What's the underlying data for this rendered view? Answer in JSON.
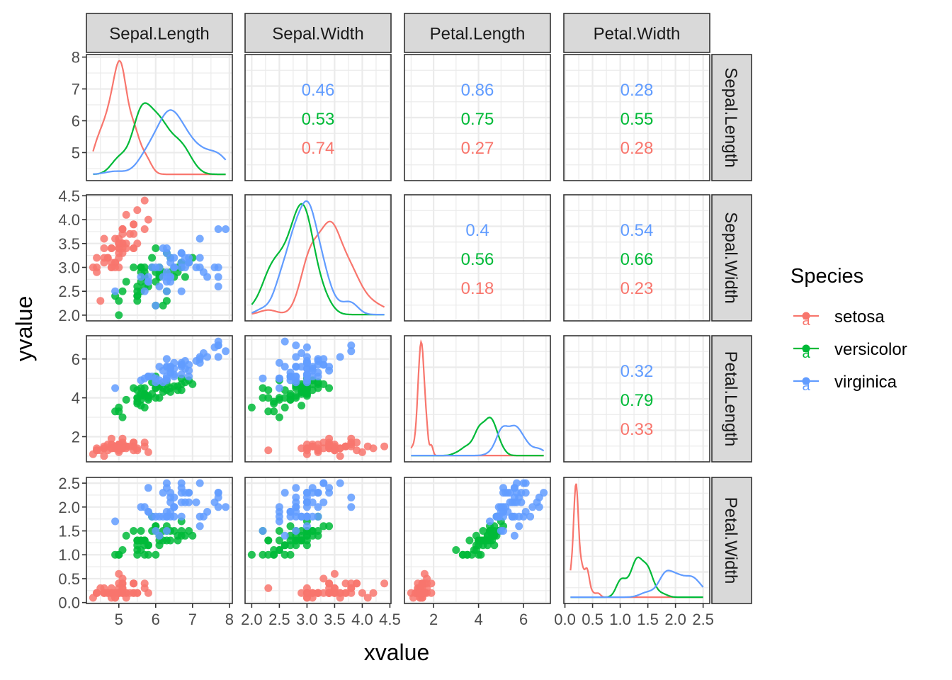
{
  "chart_data": {
    "type": "scatter",
    "subtype": "pairs-matrix (density diagonal, scatter lower, correlation upper)",
    "xlabel": "xvalue",
    "ylabel": "yvalue",
    "grid": true,
    "legend": {
      "title": "Species",
      "placement": "right",
      "entries": [
        {
          "name": "setosa",
          "color": "#F8766D",
          "key_glyph": "a"
        },
        {
          "name": "versicolor",
          "color": "#00BA38",
          "key_glyph": "a"
        },
        {
          "name": "virginica",
          "color": "#619CFF",
          "key_glyph": "a"
        }
      ]
    },
    "variables": [
      "Sepal.Length",
      "Sepal.Width",
      "Petal.Length",
      "Petal.Width"
    ],
    "axes": {
      "Sepal.Length": {
        "range": [
          4.3,
          7.9
        ],
        "ticks": [
          5,
          6,
          7,
          8
        ],
        "tick_labels": [
          "5",
          "6",
          "7",
          "8"
        ]
      },
      "Sepal.Width": {
        "range": [
          2.0,
          4.4
        ],
        "ticks": [
          2.0,
          2.5,
          3.0,
          3.5,
          4.0,
          4.5
        ],
        "tick_labels": [
          "2.0",
          "2.5",
          "3.0",
          "3.5",
          "4.0",
          "4.5"
        ]
      },
      "Petal.Length": {
        "range": [
          1.0,
          6.9
        ],
        "ticks": [
          2,
          4,
          6
        ],
        "tick_labels": [
          "2",
          "4",
          "6"
        ]
      },
      "Petal.Width": {
        "range": [
          0.1,
          2.5
        ],
        "ticks": [
          0.0,
          0.5,
          1.0,
          1.5,
          2.0,
          2.5
        ],
        "tick_labels": [
          "0.0",
          "0.5",
          "1.0",
          "1.5",
          "2.0",
          "2.5"
        ]
      }
    },
    "correlations": {
      "Sepal.Length|Sepal.Width": {
        "virginica": "0.46",
        "versicolor": "0.53",
        "setosa": "0.74"
      },
      "Sepal.Length|Petal.Length": {
        "virginica": "0.86",
        "versicolor": "0.75",
        "setosa": "0.27"
      },
      "Sepal.Length|Petal.Width": {
        "virginica": "0.28",
        "versicolor": "0.55",
        "setosa": "0.28"
      },
      "Sepal.Width|Petal.Length": {
        "virginica": "0.4",
        "versicolor": "0.56",
        "setosa": "0.18"
      },
      "Sepal.Width|Petal.Width": {
        "virginica": "0.54",
        "versicolor": "0.66",
        "setosa": "0.23"
      },
      "Petal.Length|Petal.Width": {
        "virginica": "0.32",
        "versicolor": "0.79",
        "setosa": "0.33"
      }
    },
    "density_peaks": {
      "Sepal.Length": {
        "setosa": 5.0,
        "versicolor": 5.7,
        "virginica": 6.4
      },
      "Sepal.Width": {
        "setosa": 3.4,
        "versicolor": 2.8,
        "virginica": 3.0
      },
      "Petal.Length": {
        "setosa": 1.5,
        "versicolor": 4.5,
        "virginica": 5.5
      },
      "Petal.Width": {
        "setosa": 0.2,
        "versicolor": 1.3,
        "virginica": 2.0
      }
    },
    "series": [
      {
        "name": "setosa",
        "points": [
          [
            5.1,
            3.5,
            1.4,
            0.2
          ],
          [
            4.9,
            3.0,
            1.4,
            0.2
          ],
          [
            4.7,
            3.2,
            1.3,
            0.2
          ],
          [
            4.6,
            3.1,
            1.5,
            0.2
          ],
          [
            5.0,
            3.6,
            1.4,
            0.2
          ],
          [
            5.4,
            3.9,
            1.7,
            0.4
          ],
          [
            4.6,
            3.4,
            1.4,
            0.3
          ],
          [
            5.0,
            3.4,
            1.5,
            0.2
          ],
          [
            4.4,
            2.9,
            1.4,
            0.2
          ],
          [
            4.9,
            3.1,
            1.5,
            0.1
          ],
          [
            5.4,
            3.7,
            1.5,
            0.2
          ],
          [
            4.8,
            3.4,
            1.6,
            0.2
          ],
          [
            4.8,
            3.0,
            1.4,
            0.1
          ],
          [
            4.3,
            3.0,
            1.1,
            0.1
          ],
          [
            5.8,
            4.0,
            1.2,
            0.2
          ],
          [
            5.7,
            4.4,
            1.5,
            0.4
          ],
          [
            5.4,
            3.9,
            1.3,
            0.4
          ],
          [
            5.1,
            3.5,
            1.4,
            0.3
          ],
          [
            5.7,
            3.8,
            1.7,
            0.3
          ],
          [
            5.1,
            3.8,
            1.5,
            0.3
          ],
          [
            5.4,
            3.4,
            1.7,
            0.2
          ],
          [
            5.1,
            3.7,
            1.5,
            0.4
          ],
          [
            4.6,
            3.6,
            1.0,
            0.2
          ],
          [
            5.1,
            3.3,
            1.7,
            0.5
          ],
          [
            4.8,
            3.4,
            1.9,
            0.2
          ],
          [
            5.0,
            3.0,
            1.6,
            0.2
          ],
          [
            5.0,
            3.4,
            1.6,
            0.4
          ],
          [
            5.2,
            3.5,
            1.5,
            0.2
          ],
          [
            5.2,
            3.4,
            1.4,
            0.2
          ],
          [
            4.7,
            3.2,
            1.6,
            0.2
          ],
          [
            4.8,
            3.1,
            1.6,
            0.2
          ],
          [
            5.4,
            3.4,
            1.5,
            0.4
          ],
          [
            5.2,
            4.1,
            1.5,
            0.1
          ],
          [
            5.5,
            4.2,
            1.4,
            0.2
          ],
          [
            4.9,
            3.1,
            1.5,
            0.2
          ],
          [
            5.0,
            3.2,
            1.2,
            0.2
          ],
          [
            5.5,
            3.5,
            1.3,
            0.2
          ],
          [
            4.9,
            3.6,
            1.4,
            0.1
          ],
          [
            4.4,
            3.0,
            1.3,
            0.2
          ],
          [
            5.1,
            3.4,
            1.5,
            0.2
          ],
          [
            5.0,
            3.5,
            1.3,
            0.3
          ],
          [
            4.5,
            2.3,
            1.3,
            0.3
          ],
          [
            4.4,
            3.2,
            1.3,
            0.2
          ],
          [
            5.0,
            3.5,
            1.6,
            0.6
          ],
          [
            5.1,
            3.8,
            1.9,
            0.4
          ],
          [
            4.8,
            3.0,
            1.4,
            0.3
          ],
          [
            5.1,
            3.8,
            1.6,
            0.2
          ],
          [
            4.6,
            3.2,
            1.4,
            0.2
          ],
          [
            5.3,
            3.7,
            1.5,
            0.2
          ],
          [
            5.0,
            3.3,
            1.4,
            0.2
          ]
        ]
      },
      {
        "name": "versicolor",
        "points": [
          [
            7.0,
            3.2,
            4.7,
            1.4
          ],
          [
            6.4,
            3.2,
            4.5,
            1.5
          ],
          [
            6.9,
            3.1,
            4.9,
            1.5
          ],
          [
            5.5,
            2.3,
            4.0,
            1.3
          ],
          [
            6.5,
            2.8,
            4.6,
            1.5
          ],
          [
            5.7,
            2.8,
            4.5,
            1.3
          ],
          [
            6.3,
            3.3,
            4.7,
            1.6
          ],
          [
            4.9,
            2.4,
            3.3,
            1.0
          ],
          [
            6.6,
            2.9,
            4.6,
            1.3
          ],
          [
            5.2,
            2.7,
            3.9,
            1.4
          ],
          [
            5.0,
            2.0,
            3.5,
            1.0
          ],
          [
            5.9,
            3.0,
            4.2,
            1.5
          ],
          [
            6.0,
            2.2,
            4.0,
            1.0
          ],
          [
            6.1,
            2.9,
            4.7,
            1.4
          ],
          [
            5.6,
            2.9,
            3.6,
            1.3
          ],
          [
            6.7,
            3.1,
            4.4,
            1.4
          ],
          [
            5.6,
            3.0,
            4.5,
            1.5
          ],
          [
            5.8,
            2.7,
            4.1,
            1.0
          ],
          [
            6.2,
            2.2,
            4.5,
            1.5
          ],
          [
            5.6,
            2.5,
            3.9,
            1.1
          ],
          [
            5.9,
            3.2,
            4.8,
            1.8
          ],
          [
            6.1,
            2.8,
            4.0,
            1.3
          ],
          [
            6.3,
            2.5,
            4.9,
            1.5
          ],
          [
            6.1,
            2.8,
            4.7,
            1.2
          ],
          [
            6.4,
            2.9,
            4.3,
            1.3
          ],
          [
            6.6,
            3.0,
            4.4,
            1.4
          ],
          [
            6.8,
            2.8,
            4.8,
            1.4
          ],
          [
            6.7,
            3.0,
            5.0,
            1.7
          ],
          [
            6.0,
            2.9,
            4.5,
            1.5
          ],
          [
            5.7,
            2.6,
            3.5,
            1.0
          ],
          [
            5.5,
            2.4,
            3.8,
            1.1
          ],
          [
            5.5,
            2.4,
            3.7,
            1.0
          ],
          [
            5.8,
            2.7,
            3.9,
            1.2
          ],
          [
            6.0,
            2.7,
            5.1,
            1.6
          ],
          [
            5.4,
            3.0,
            4.5,
            1.5
          ],
          [
            6.0,
            3.4,
            4.5,
            1.6
          ],
          [
            6.7,
            3.1,
            4.7,
            1.5
          ],
          [
            6.3,
            2.3,
            4.4,
            1.3
          ],
          [
            5.6,
            3.0,
            4.1,
            1.3
          ],
          [
            5.5,
            2.5,
            4.0,
            1.3
          ],
          [
            5.5,
            2.6,
            4.4,
            1.2
          ],
          [
            6.1,
            3.0,
            4.6,
            1.4
          ],
          [
            5.8,
            2.6,
            4.0,
            1.2
          ],
          [
            5.0,
            2.3,
            3.3,
            1.0
          ],
          [
            5.6,
            2.7,
            4.2,
            1.3
          ],
          [
            5.7,
            3.0,
            4.2,
            1.2
          ],
          [
            5.7,
            2.9,
            4.2,
            1.3
          ],
          [
            6.2,
            2.9,
            4.3,
            1.3
          ],
          [
            5.1,
            2.5,
            3.0,
            1.1
          ],
          [
            5.7,
            2.8,
            4.1,
            1.3
          ]
        ]
      },
      {
        "name": "virginica",
        "points": [
          [
            6.3,
            3.3,
            6.0,
            2.5
          ],
          [
            5.8,
            2.7,
            5.1,
            1.9
          ],
          [
            7.1,
            3.0,
            5.9,
            2.1
          ],
          [
            6.3,
            2.9,
            5.6,
            1.8
          ],
          [
            6.5,
            3.0,
            5.8,
            2.2
          ],
          [
            7.6,
            3.0,
            6.6,
            2.1
          ],
          [
            4.9,
            2.5,
            4.5,
            1.7
          ],
          [
            7.3,
            2.9,
            6.3,
            1.8
          ],
          [
            6.7,
            2.5,
            5.8,
            1.8
          ],
          [
            7.2,
            3.6,
            6.1,
            2.5
          ],
          [
            6.5,
            3.2,
            5.1,
            2.0
          ],
          [
            6.4,
            2.7,
            5.3,
            1.9
          ],
          [
            6.8,
            3.0,
            5.5,
            2.1
          ],
          [
            5.7,
            2.5,
            5.0,
            2.0
          ],
          [
            5.8,
            2.8,
            5.1,
            2.4
          ],
          [
            6.4,
            3.2,
            5.3,
            2.3
          ],
          [
            6.5,
            3.0,
            5.5,
            1.8
          ],
          [
            7.7,
            3.8,
            6.7,
            2.2
          ],
          [
            7.7,
            2.6,
            6.9,
            2.3
          ],
          [
            6.0,
            2.2,
            5.0,
            1.5
          ],
          [
            6.9,
            3.2,
            5.7,
            2.3
          ],
          [
            5.6,
            2.8,
            4.9,
            2.0
          ],
          [
            7.7,
            2.8,
            6.7,
            2.0
          ],
          [
            6.3,
            2.7,
            4.9,
            1.8
          ],
          [
            6.7,
            3.3,
            5.7,
            2.1
          ],
          [
            7.2,
            3.2,
            6.0,
            1.8
          ],
          [
            6.2,
            2.8,
            4.8,
            1.8
          ],
          [
            6.1,
            3.0,
            4.9,
            1.8
          ],
          [
            6.4,
            2.8,
            5.6,
            2.1
          ],
          [
            7.2,
            3.0,
            5.8,
            1.6
          ],
          [
            7.4,
            2.8,
            6.1,
            1.9
          ],
          [
            7.9,
            3.8,
            6.4,
            2.0
          ],
          [
            6.4,
            2.8,
            5.6,
            2.2
          ],
          [
            6.3,
            2.8,
            5.1,
            1.5
          ],
          [
            6.1,
            2.6,
            5.6,
            1.4
          ],
          [
            7.7,
            3.0,
            6.1,
            2.3
          ],
          [
            6.3,
            3.4,
            5.6,
            2.4
          ],
          [
            6.4,
            3.1,
            5.5,
            1.8
          ],
          [
            6.0,
            3.0,
            4.8,
            1.8
          ],
          [
            6.9,
            3.1,
            5.4,
            2.1
          ],
          [
            6.7,
            3.1,
            5.6,
            2.4
          ],
          [
            6.9,
            3.1,
            5.1,
            2.3
          ],
          [
            5.8,
            2.7,
            5.1,
            1.9
          ],
          [
            6.8,
            3.2,
            5.9,
            2.3
          ],
          [
            6.7,
            3.3,
            5.7,
            2.5
          ],
          [
            6.7,
            3.0,
            5.2,
            2.3
          ],
          [
            6.3,
            2.5,
            5.0,
            1.9
          ],
          [
            6.5,
            3.0,
            5.2,
            2.0
          ],
          [
            6.2,
            3.4,
            5.4,
            2.3
          ],
          [
            5.9,
            3.0,
            5.1,
            1.8
          ]
        ]
      }
    ]
  }
}
